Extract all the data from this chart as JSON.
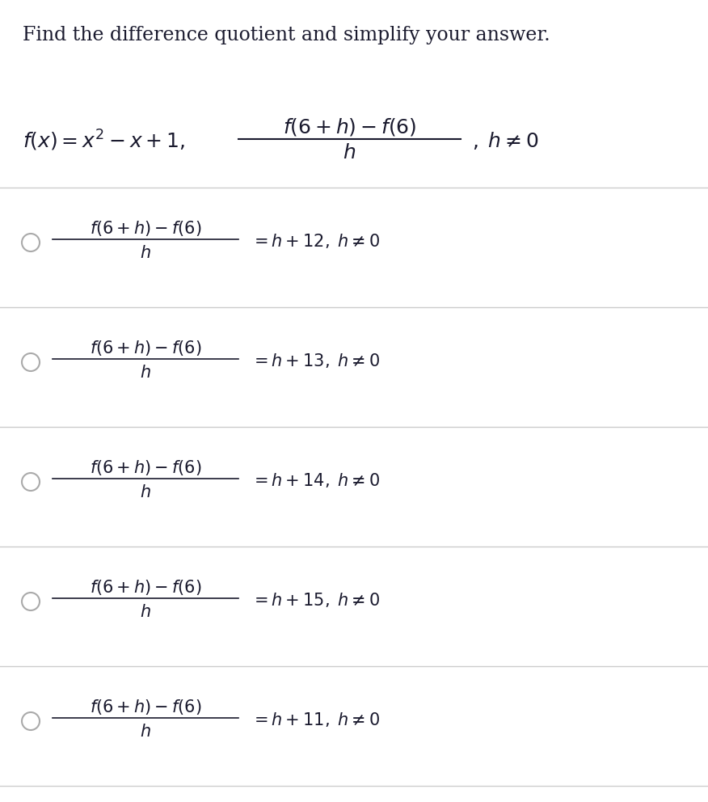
{
  "title": "Find the difference quotient and simplify your answer.",
  "background_color": "#ffffff",
  "text_color": "#1a1a2e",
  "line_color": "#cccccc",
  "circle_color": "#aaaaaa",
  "title_fontsize": 17,
  "math_fontsize": 15,
  "fig_width": 8.76,
  "fig_height": 9.92,
  "dpi": 100,
  "options": [
    {
      "answer": 12
    },
    {
      "answer": 13
    },
    {
      "answer": 14
    },
    {
      "answer": 15
    },
    {
      "answer": 11
    }
  ]
}
